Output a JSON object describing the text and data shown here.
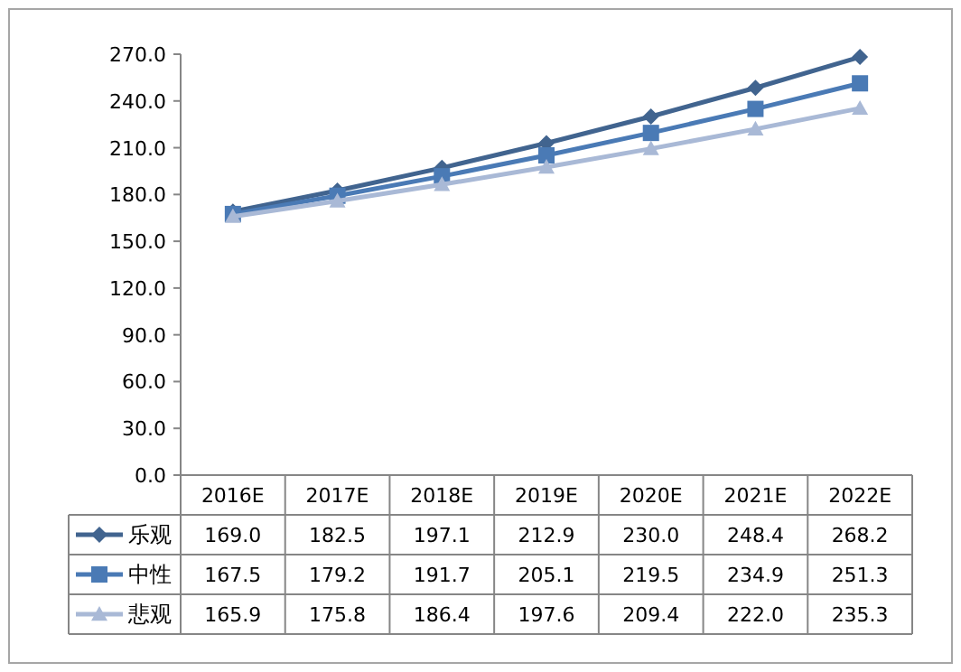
{
  "chart_data": {
    "type": "line",
    "categories": [
      "2016E",
      "2017E",
      "2018E",
      "2019E",
      "2020E",
      "2021E",
      "2022E"
    ],
    "ylim": [
      0,
      270
    ],
    "yticks": [
      {
        "value": 0,
        "label": "0.0"
      },
      {
        "value": 30,
        "label": "30.0"
      },
      {
        "value": 60,
        "label": "60.0"
      },
      {
        "value": 90,
        "label": "90.0"
      },
      {
        "value": 120,
        "label": "120.0"
      },
      {
        "value": 150,
        "label": "150.0"
      },
      {
        "value": 180,
        "label": "180.0"
      },
      {
        "value": 210,
        "label": "210.0"
      },
      {
        "value": 240,
        "label": "240.0"
      },
      {
        "value": 270,
        "label": "270.0"
      }
    ],
    "grid": false,
    "legend": "bottom",
    "series": [
      {
        "name": "乐观",
        "color": "#41648f",
        "marker": "diamond",
        "values": [
          169.0,
          182.5,
          197.1,
          212.9,
          230.0,
          248.4,
          268.2
        ],
        "value_labels": [
          "169.0",
          "182.5",
          "197.1",
          "212.9",
          "230.0",
          "248.4",
          "268.2"
        ]
      },
      {
        "name": "中性",
        "color": "#4a7ab5",
        "marker": "square",
        "values": [
          167.5,
          179.2,
          191.7,
          205.1,
          219.5,
          234.9,
          251.3
        ],
        "value_labels": [
          "167.5",
          "179.2",
          "191.7",
          "205.1",
          "219.5",
          "234.9",
          "251.3"
        ]
      },
      {
        "name": "悲观",
        "color": "#a9b9d6",
        "marker": "triangle",
        "values": [
          165.9,
          175.8,
          186.4,
          197.6,
          209.4,
          222.0,
          235.3
        ],
        "value_labels": [
          "165.9",
          "175.8",
          "186.4",
          "197.6",
          "209.4",
          "222.0",
          "235.3"
        ]
      }
    ]
  }
}
